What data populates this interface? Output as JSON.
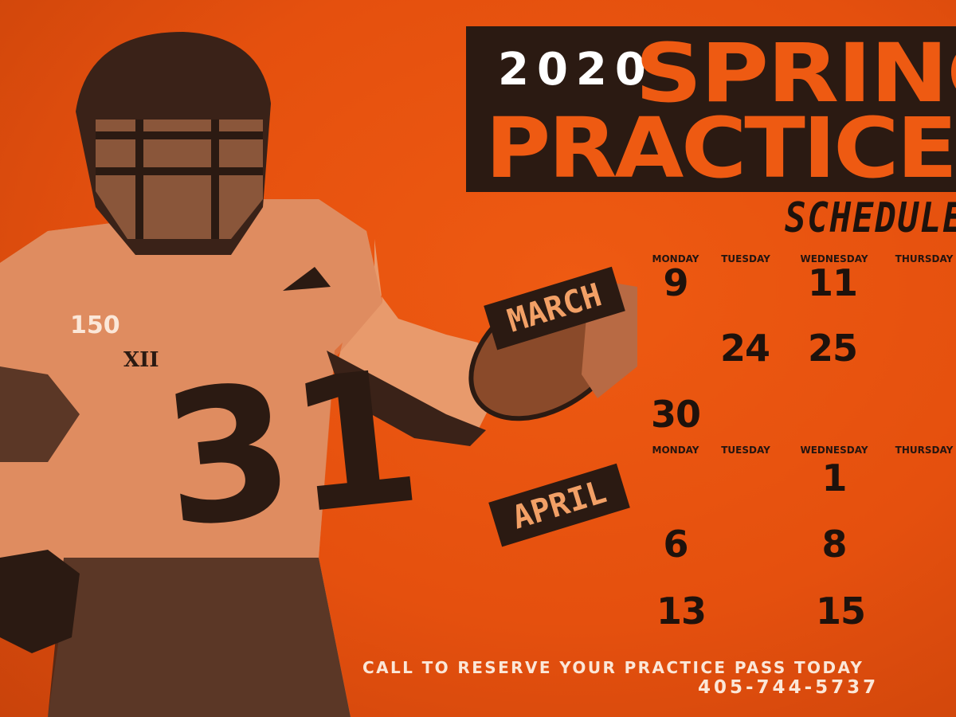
{
  "header": {
    "year": "2020",
    "line1": "SPRING",
    "line2": "PRACTICE",
    "line3": "SCHEDULE"
  },
  "colors": {
    "background": "#e8540f",
    "dark": "#2b1a12",
    "banner_text": "#f2a066",
    "light_text": "#fbe7d8"
  },
  "calendar": {
    "march": {
      "label": "MARCH",
      "days": [
        "MONDAY",
        "TUESDAY",
        "WEDNESDAY",
        "THURSDAY"
      ],
      "rows": [
        [
          "9",
          "",
          "11",
          ""
        ],
        [
          "",
          "24",
          "25",
          ""
        ],
        [
          "30",
          "",
          "",
          ""
        ]
      ]
    },
    "april": {
      "label": "APRIL",
      "days": [
        "MONDAY",
        "TUESDAY",
        "WEDNESDAY",
        "THURSDAY"
      ],
      "rows": [
        [
          "",
          "",
          "1",
          ""
        ],
        [
          "6",
          "",
          "8",
          ""
        ],
        [
          "13",
          "",
          "15",
          ""
        ]
      ]
    }
  },
  "player": {
    "jersey_number": "31",
    "patch": "150",
    "conference": "XII"
  },
  "footer": {
    "cta": "CALL TO RESERVE YOUR PRACTICE PASS TODAY",
    "phone": "405-744-5737"
  }
}
